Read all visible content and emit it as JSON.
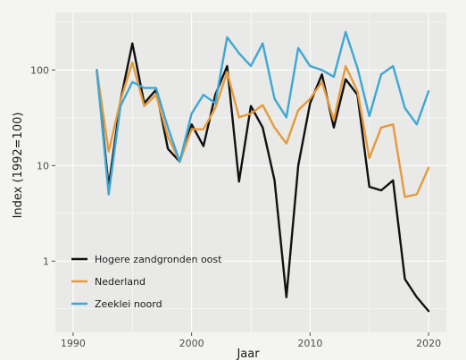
{
  "chart_data": {
    "type": "line",
    "xlabel": "Jaar",
    "ylabel": "Index (1992=100)",
    "y_scale": "log",
    "xlim": [
      1988.5,
      2021.5
    ],
    "ylim": [
      0.18,
      400
    ],
    "x_ticks": [
      1990,
      2000,
      2010,
      2020
    ],
    "x_tick_labels": [
      "1990",
      "2000",
      "2010",
      "2020"
    ],
    "y_ticks": [
      1,
      10,
      100
    ],
    "y_tick_labels": [
      "1",
      "10",
      "100"
    ],
    "legend_position": "bottom-left",
    "grid": true,
    "x": [
      1992,
      1993,
      1994,
      1995,
      1996,
      1997,
      1998,
      1999,
      2000,
      2001,
      2002,
      2003,
      2004,
      2005,
      2006,
      2007,
      2008,
      2009,
      2010,
      2011,
      2012,
      2013,
      2014,
      2015,
      2016,
      2017,
      2018,
      2019,
      2020
    ],
    "series": [
      {
        "name": "Hogere zandgronden oost",
        "color": "#111111",
        "values": [
          100,
          6,
          48,
          190,
          45,
          62,
          15,
          11,
          27,
          16,
          55,
          110,
          6.8,
          42,
          25,
          7,
          0.42,
          10,
          45,
          90,
          25,
          80,
          55,
          6,
          5.5,
          7,
          0.65,
          0.42,
          0.3
        ]
      },
      {
        "name": "Nederland",
        "color": "#e69a3c",
        "values": [
          100,
          14,
          48,
          120,
          42,
          55,
          20,
          11,
          24,
          24,
          40,
          95,
          32,
          35,
          43,
          25,
          17,
          38,
          50,
          75,
          30,
          110,
          60,
          12,
          25,
          27,
          4.7,
          5,
          9.5
        ]
      },
      {
        "name": "Zeeklei noord",
        "color": "#3fa7d4",
        "values": [
          100,
          5,
          42,
          75,
          65,
          65,
          25,
          11,
          35,
          55,
          45,
          220,
          150,
          110,
          190,
          50,
          32,
          170,
          110,
          100,
          85,
          250,
          105,
          33,
          90,
          110,
          40,
          27,
          60
        ]
      }
    ]
  }
}
